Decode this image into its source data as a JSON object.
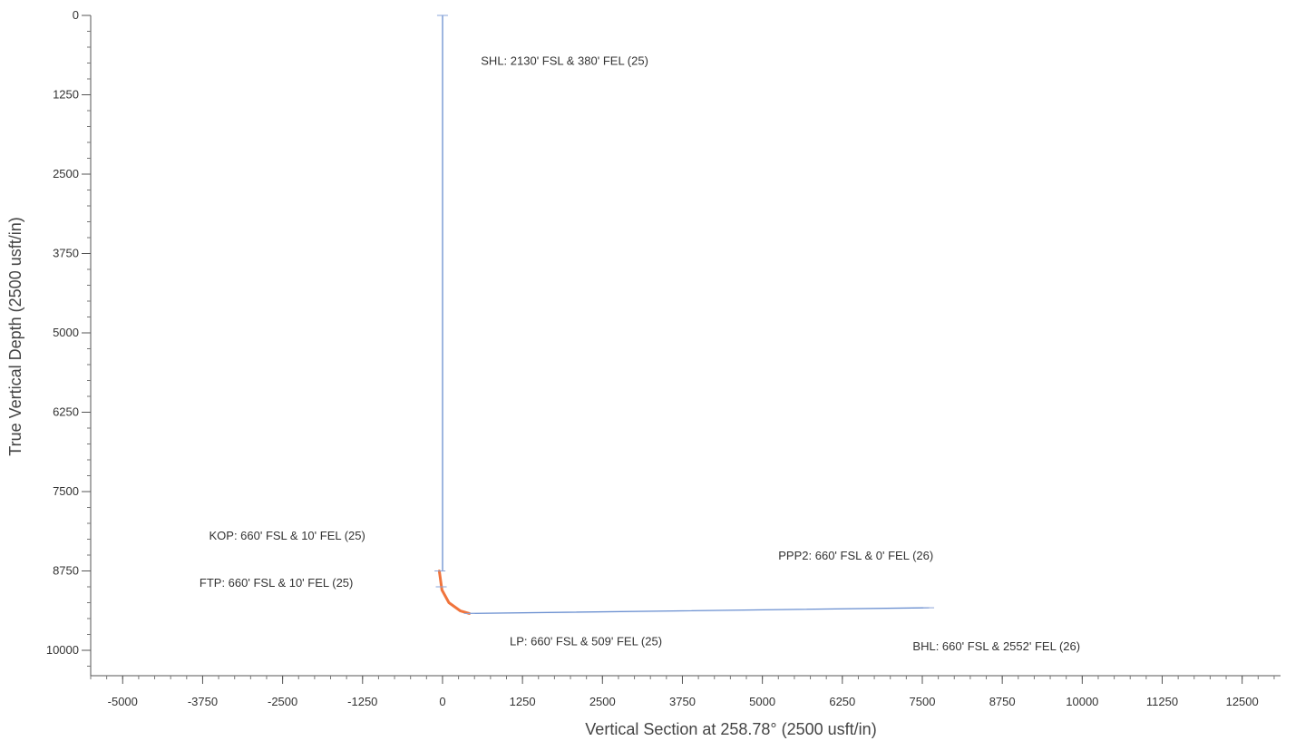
{
  "chart_data": {
    "type": "line",
    "xlabel": "Vertical Section at 258.78° (2500 usft/in)",
    "ylabel": "True Vertical Depth (2500 usft/in)",
    "xlim": [
      -5500,
      13100
    ],
    "ylim": [
      0,
      10400
    ],
    "y_inverted": true,
    "grid": false,
    "x_ticks": [
      -5000,
      -3750,
      -2500,
      -1250,
      0,
      1250,
      2500,
      3750,
      5000,
      6250,
      7500,
      8750,
      10000,
      11250,
      12500
    ],
    "y_ticks": [
      0,
      1250,
      2500,
      3750,
      5000,
      6250,
      7500,
      8750,
      10000
    ],
    "series": [
      {
        "color": "#6a8fd0",
        "points": [
          [
            0,
            0
          ],
          [
            0,
            8750
          ]
        ]
      },
      {
        "color": "#f0743c",
        "points": [
          [
            -50,
            8750
          ],
          [
            -10,
            9050
          ],
          [
            100,
            9250
          ],
          [
            280,
            9380
          ],
          [
            420,
            9420
          ]
        ]
      },
      {
        "color": "#6a8fd0",
        "points": [
          [
            420,
            9420
          ],
          [
            7600,
            9330
          ]
        ]
      }
    ],
    "annotations": [
      {
        "text": "SHL: 2130' FSL & 380' FEL (25)",
        "x": 600,
        "y": 780,
        "anchor": "start"
      },
      {
        "text": "KOP: 660' FSL & 10' FEL (25)",
        "x": -3650,
        "y": 8260,
        "anchor": "start"
      },
      {
        "text": "FTP: 660' FSL & 10' FEL (25)",
        "x": -3800,
        "y": 9000,
        "anchor": "start"
      },
      {
        "text": "PPP2: 660' FSL & 0' FEL (26)",
        "x": 5250,
        "y": 8570,
        "anchor": "start"
      },
      {
        "text": "LP: 660' FSL & 509' FEL (25)",
        "x": 1050,
        "y": 9920,
        "anchor": "start"
      },
      {
        "text": "BHL: 660' FSL & 2552' FEL (26)",
        "x": 7350,
        "y": 10000,
        "anchor": "start"
      }
    ]
  }
}
